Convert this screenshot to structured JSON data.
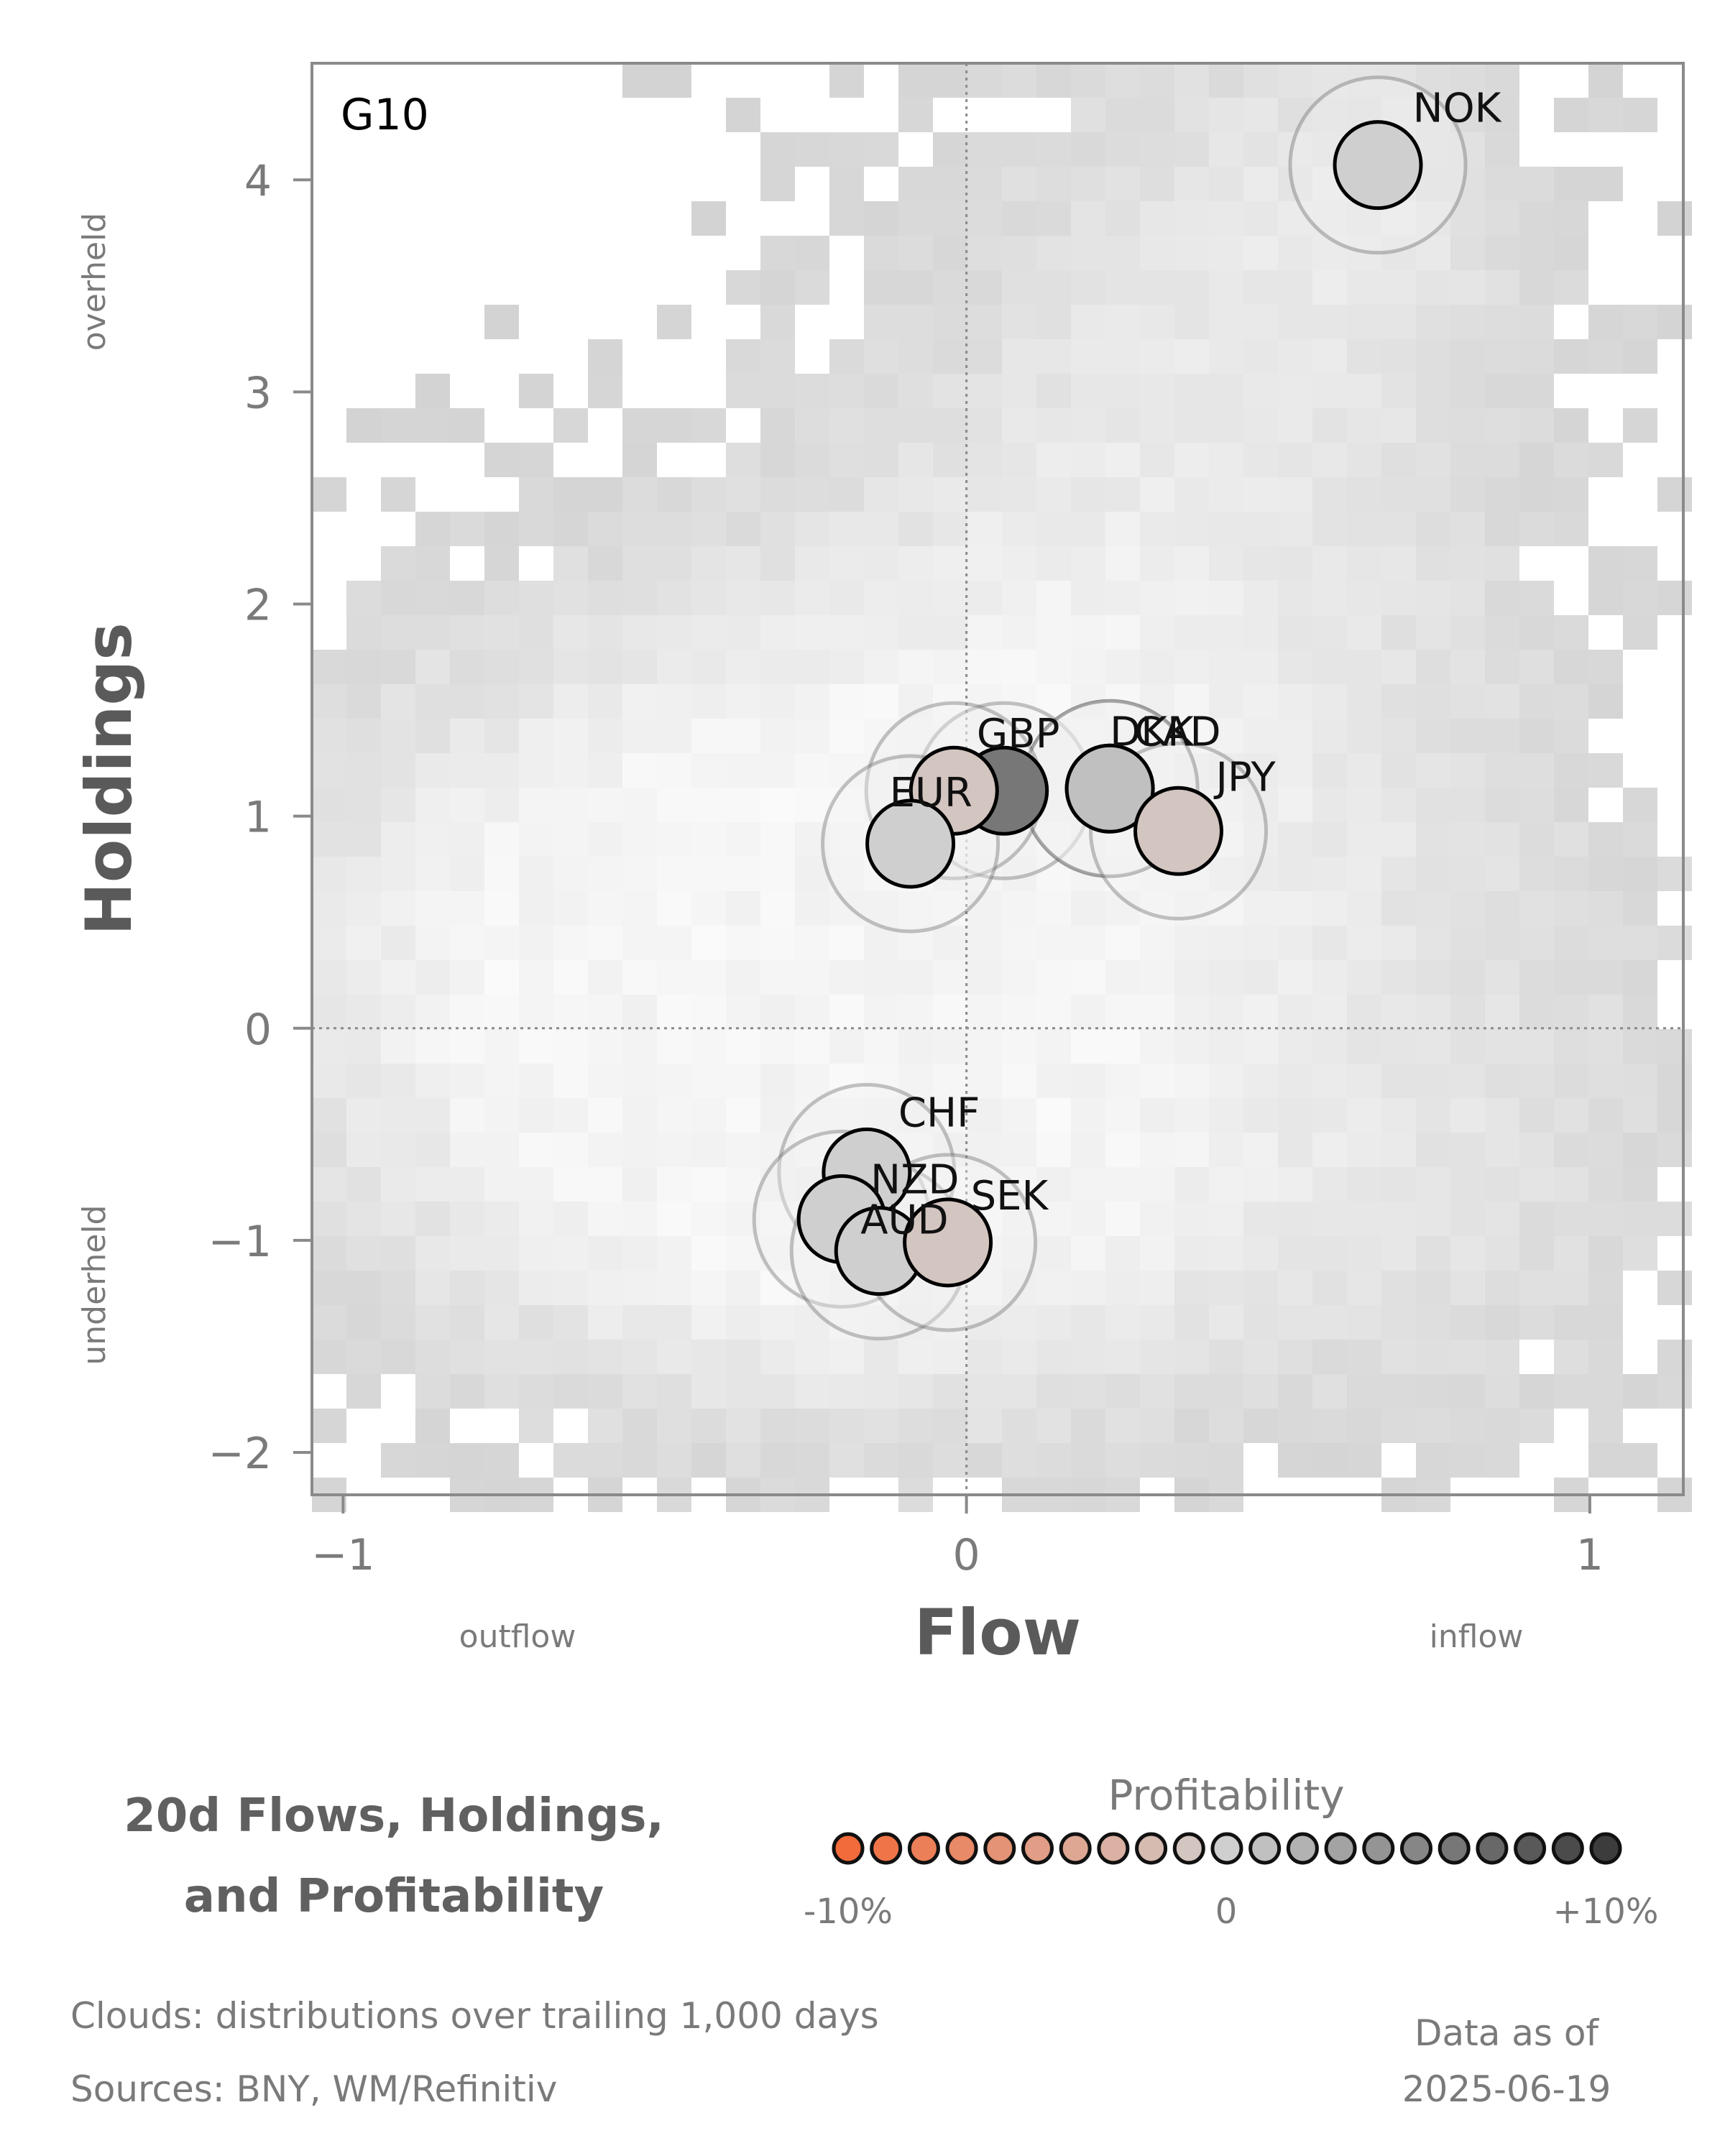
{
  "chart_data": {
    "type": "scatter",
    "panel_label": "G10",
    "xlabel": "Flow",
    "ylabel": "Holdings",
    "xlim": [
      -1.05,
      1.15
    ],
    "ylim": [
      -2.2,
      4.55
    ],
    "x_ticks": [
      {
        "value": -1,
        "label": "−1"
      },
      {
        "value": 0,
        "label": "0"
      },
      {
        "value": 1,
        "label": "1"
      }
    ],
    "y_ticks": [
      {
        "value": -2,
        "label": "−2"
      },
      {
        "value": -1,
        "label": "−1"
      },
      {
        "value": 0,
        "label": "0"
      },
      {
        "value": 1,
        "label": "1"
      },
      {
        "value": 2,
        "label": "2"
      },
      {
        "value": 3,
        "label": "3"
      },
      {
        "value": 4,
        "label": "4"
      }
    ],
    "x_side_labels": {
      "left": "outflow",
      "right": "inflow"
    },
    "y_side_labels": {
      "top": "overheld",
      "bottom": "underheld"
    },
    "reference_lines": {
      "x": 0,
      "y": 0,
      "style": "dotted"
    },
    "background": "2D histogram clouds of trailing 1,000-day distributions",
    "points": [
      {
        "currency": "NOK",
        "flow": 0.66,
        "holdings": 4.07,
        "profitability": 0.0
      },
      {
        "currency": "GBP",
        "flow": 0.06,
        "holdings": 1.12,
        "profitability": 6.0
      },
      {
        "currency": "DKK",
        "flow": 0.23,
        "holdings": 1.13,
        "profitability": 1.0
      },
      {
        "currency": "CAD",
        "flow": 0.23,
        "holdings": 1.13,
        "profitability": 1.0
      },
      {
        "currency": "JPY",
        "flow": 0.34,
        "holdings": 0.93,
        "profitability": -1.0
      },
      {
        "currency": "EUR",
        "flow": -0.02,
        "holdings": 1.12,
        "profitability": -1.0
      },
      {
        "currency": "EUR-2",
        "flow": -0.09,
        "holdings": 0.87,
        "profitability": 0.0
      },
      {
        "currency": "CHF",
        "flow": -0.16,
        "holdings": -0.68,
        "profitability": 0.0
      },
      {
        "currency": "NZD",
        "flow": -0.2,
        "holdings": -0.9,
        "profitability": 0.0
      },
      {
        "currency": "AUD",
        "flow": -0.14,
        "holdings": -1.05,
        "profitability": 0.0
      },
      {
        "currency": "SEK",
        "flow": -0.03,
        "holdings": -1.01,
        "profitability": -1.0
      }
    ],
    "point_labels": [
      {
        "text": "NOK",
        "ref": "NOK"
      },
      {
        "text": "GBP",
        "ref": "GBP"
      },
      {
        "text": "DKK",
        "ref": "DKK"
      },
      {
        "text": "CAD",
        "ref": "CAD"
      },
      {
        "text": "JPY",
        "ref": "JPY"
      },
      {
        "text": "EUR",
        "ref": "EUR"
      },
      {
        "text": "CHF",
        "ref": "CHF"
      },
      {
        "text": "NZD",
        "ref": "NZD"
      },
      {
        "text": "AUD",
        "ref": "AUD"
      },
      {
        "text": "SEK",
        "ref": "SEK"
      }
    ],
    "colorbar": {
      "title": "Profitability",
      "min_label": "-10%",
      "mid_label": "0",
      "max_label": "+10%",
      "min": -10,
      "max": 10,
      "low_color": "#f26b3a",
      "mid_color": "#cfcfcf",
      "high_color": "#3c3c3c",
      "swatch_count": 21
    }
  },
  "title_lines": [
    "20d Flows, Holdings,",
    "and Profitability"
  ],
  "footer": {
    "clouds": "Clouds:  distributions over trailing 1,000 days",
    "sources": "Sources:  BNY, WM/Refinitiv",
    "asof_label": "Data as of",
    "asof_date": "2025-06-19"
  }
}
